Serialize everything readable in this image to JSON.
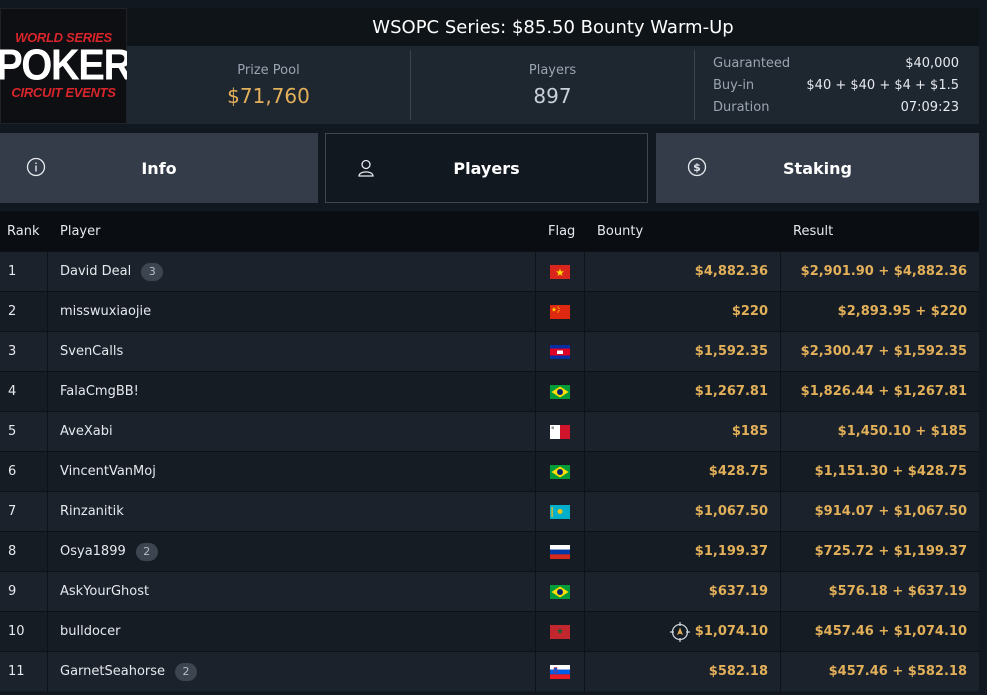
{
  "logo": {
    "line1": "WORLD SERIES",
    "line2": "POKER",
    "line3": "CIRCUIT EVENTS"
  },
  "title": "WSOPC Series: $85.50 Bounty Warm-Up",
  "stats": {
    "prize_pool_label": "Prize Pool",
    "prize_pool_value": "$71,760",
    "players_label": "Players",
    "players_value": "897"
  },
  "details": {
    "guaranteed_label": "Guaranteed",
    "guaranteed_value": "$40,000",
    "buyin_label": "Buy-in",
    "buyin_value": "$40 + $40 + $4 + $1.5",
    "duration_label": "Duration",
    "duration_value": "07:09:23"
  },
  "tabs": [
    {
      "label": "Info",
      "icon": "info-icon"
    },
    {
      "label": "Players",
      "icon": "user-icon"
    },
    {
      "label": "Staking",
      "icon": "dollar-icon"
    }
  ],
  "table": {
    "headers": {
      "rank": "Rank",
      "player": "Player",
      "flag": "Flag",
      "bounty": "Bounty",
      "result": "Result"
    },
    "rows": [
      {
        "rank": "1",
        "player": "David Deal",
        "badge": "3",
        "flag": "vietnam",
        "bounty": "$4,882.36",
        "result": "$2,901.90 + $4,882.36"
      },
      {
        "rank": "2",
        "player": "misswuxiaojie",
        "badge": "",
        "flag": "china",
        "bounty": "$220",
        "result": "$2,893.95 + $220"
      },
      {
        "rank": "3",
        "player": "SvenCalls",
        "badge": "",
        "flag": "cambodia",
        "bounty": "$1,592.35",
        "result": "$2,300.47 + $1,592.35"
      },
      {
        "rank": "4",
        "player": "FalaCmgBB!",
        "badge": "",
        "flag": "brazil",
        "bounty": "$1,267.81",
        "result": "$1,826.44 + $1,267.81"
      },
      {
        "rank": "5",
        "player": "AveXabi",
        "badge": "",
        "flag": "malta",
        "bounty": "$185",
        "result": "$1,450.10 + $185"
      },
      {
        "rank": "6",
        "player": "VincentVanMoj",
        "badge": "",
        "flag": "brazil",
        "bounty": "$428.75",
        "result": "$1,151.30 + $428.75"
      },
      {
        "rank": "7",
        "player": "Rinzanitik",
        "badge": "",
        "flag": "kazakhstan",
        "bounty": "$1,067.50",
        "result": "$914.07 + $1,067.50"
      },
      {
        "rank": "8",
        "player": "Osya1899",
        "badge": "2",
        "flag": "russia",
        "bounty": "$1,199.37",
        "result": "$725.72 + $1,199.37"
      },
      {
        "rank": "9",
        "player": "AskYourGhost",
        "badge": "",
        "flag": "brazil",
        "bounty": "$637.19",
        "result": "$576.18 + $637.19"
      },
      {
        "rank": "10",
        "player": "bulldocer",
        "badge": "",
        "flag": "morocco",
        "bounty": "$1,074.10",
        "bounty_icon": "target-icon",
        "result": "$457.46 + $1,074.10"
      },
      {
        "rank": "11",
        "player": "GarnetSeahorse",
        "badge": "2",
        "flag": "slovenia",
        "bounty": "$582.18",
        "result": "$457.46 + $582.18"
      }
    ]
  },
  "colors": {
    "accent_gold": "#e3b05a",
    "background": "#121820",
    "tab_bg": "#333c48"
  }
}
